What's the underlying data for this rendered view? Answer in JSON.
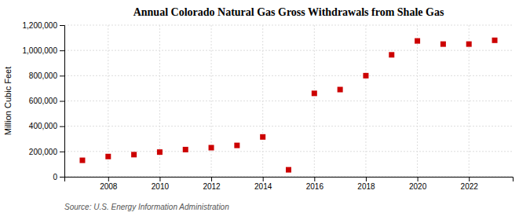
{
  "chart_data": {
    "type": "scatter",
    "title": "Annual Colorado Natural Gas Gross Withdrawals from Shale Gas",
    "ylabel": "Million Cubic Feet",
    "annotations": [
      "Source: U.S. Energy Information Administration"
    ],
    "x": [
      2007,
      2008,
      2009,
      2010,
      2011,
      2012,
      2013,
      2014,
      2015,
      2016,
      2017,
      2018,
      2019,
      2020,
      2021,
      2022,
      2023
    ],
    "values": [
      130000,
      160000,
      175000,
      195000,
      215000,
      230000,
      248000,
      315000,
      55000,
      660000,
      690000,
      800000,
      965000,
      1075000,
      1050000,
      1050000,
      1080000
    ],
    "color": "#cc0000",
    "marker": "square",
    "xlim": [
      2006.3,
      2023.7
    ],
    "xticks": [
      2008,
      2010,
      2012,
      2014,
      2016,
      2018,
      2020,
      2022
    ],
    "ylim": [
      0,
      1200000
    ],
    "yticks": [
      0,
      {
        "value": 200000,
        "label": "200,000"
      },
      {
        "value": 400000,
        "label": "400,000"
      },
      {
        "value": 600000,
        "label": "600,000"
      },
      {
        "value": 800000,
        "label": "800,000"
      },
      {
        "value": 1000000,
        "label": "1,000,000"
      },
      {
        "value": 1200000,
        "label": "1,200,000"
      }
    ],
    "grid": true
  }
}
